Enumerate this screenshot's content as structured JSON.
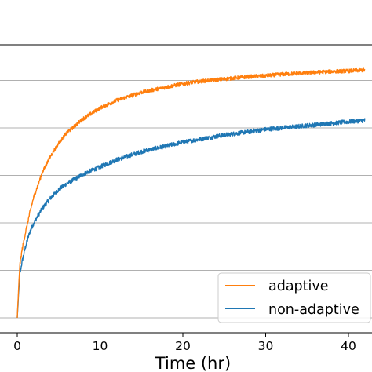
{
  "chart_data": {
    "type": "line",
    "title": "",
    "xlabel": "Time (hr)",
    "ylabel": "",
    "xlim": [
      -2,
      43
    ],
    "ylim": [
      0,
      5.8
    ],
    "xticks": [
      0,
      10,
      20,
      30,
      40
    ],
    "xtick_labels": [
      "0",
      "10",
      "20",
      "30",
      "40"
    ],
    "grid": "horizontal",
    "legend_position": "bottom-right",
    "series": [
      {
        "name": "adaptive",
        "color": "#ff7f0e",
        "noise": 0.04,
        "x": [
          0,
          0.3,
          0.6,
          1,
          1.5,
          2,
          3,
          4,
          5,
          6,
          8,
          10,
          12,
          15,
          18,
          20,
          22,
          25,
          28,
          30,
          32,
          35,
          38,
          40,
          42
        ],
        "y": [
          0,
          1.1,
          1.45,
          1.8,
          2.2,
          2.55,
          3.05,
          3.4,
          3.68,
          3.9,
          4.2,
          4.42,
          4.58,
          4.75,
          4.86,
          4.93,
          4.98,
          5.03,
          5.08,
          5.1,
          5.13,
          5.16,
          5.19,
          5.2,
          5.22
        ]
      },
      {
        "name": "non-adaptive",
        "color": "#1f77b4",
        "noise": 0.045,
        "x": [
          0,
          0.3,
          0.6,
          1,
          1.5,
          2,
          3,
          4,
          5,
          6,
          8,
          10,
          12,
          15,
          18,
          20,
          22,
          25,
          28,
          30,
          32,
          35,
          38,
          40,
          42
        ],
        "y": [
          0,
          0.9,
          1.2,
          1.5,
          1.8,
          2.0,
          2.3,
          2.52,
          2.7,
          2.83,
          3.03,
          3.18,
          3.33,
          3.5,
          3.62,
          3.7,
          3.76,
          3.85,
          3.92,
          3.97,
          4.0,
          4.05,
          4.1,
          4.13,
          4.16
        ]
      }
    ]
  }
}
